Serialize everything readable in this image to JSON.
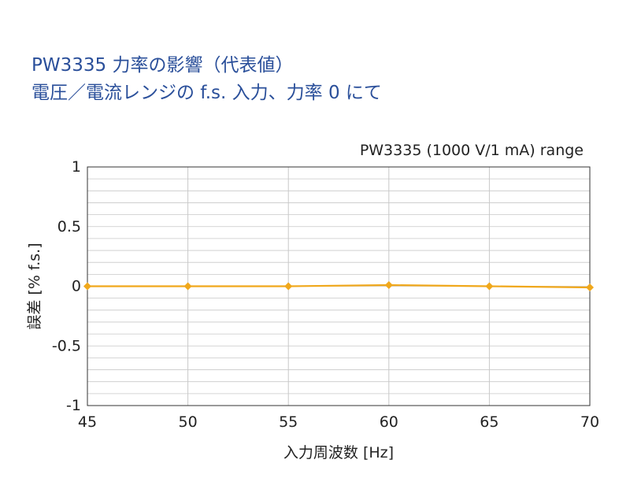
{
  "title_lines": [
    "PW3335 力率の影響（代表値）",
    "電圧／電流レンジの f.s. 入力、力率 0 にて"
  ],
  "colors": {
    "title": "#2a4f9a",
    "series": "#f0a81c",
    "grid": "#c8c8c8",
    "axis": "#333333",
    "text": "#222222"
  },
  "chart_data": {
    "type": "line",
    "subtitle": "PW3335 (1000 V/1 mA) range",
    "xlabel": "入力周波数 [Hz]",
    "ylabel": "誤差 [% f.s.]",
    "xlim": [
      45,
      70
    ],
    "ylim": [
      -1,
      1
    ],
    "grid": true,
    "x_ticks": [
      45,
      50,
      55,
      60,
      65,
      70
    ],
    "y_ticks": [
      -1,
      -0.5,
      0,
      0.5,
      1
    ],
    "x_tick_labels": [
      "45",
      "50",
      "55",
      "60",
      "65",
      "70"
    ],
    "y_tick_labels": [
      "-1",
      "-0.5",
      "0",
      "0.5",
      "1"
    ],
    "series": [
      {
        "x": [
          45,
          50,
          55,
          60,
          65,
          70
        ],
        "values": [
          0.0,
          0.0,
          0.0,
          0.01,
          0.0,
          -0.01
        ]
      }
    ]
  }
}
